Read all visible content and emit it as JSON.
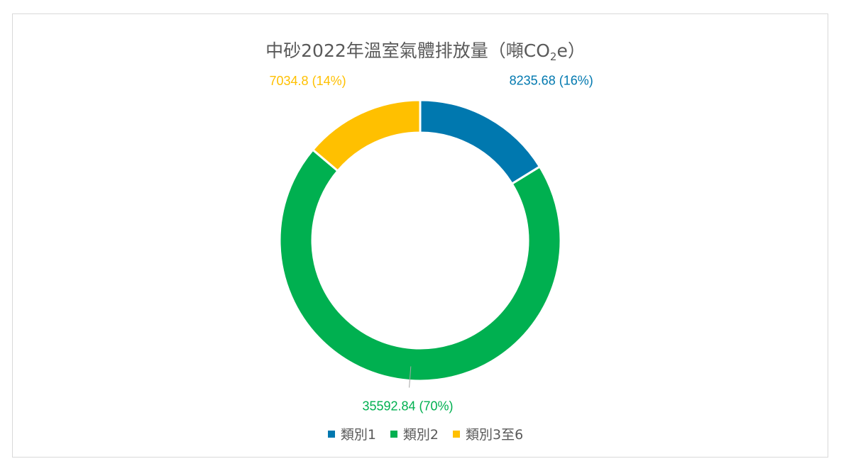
{
  "chart_data": {
    "type": "pie",
    "subtype": "donut",
    "title_main": "中砂2022年溫室氣體排放量（噸CO",
    "title_sub": "2",
    "title_end": "e）",
    "categories": [
      "類別1",
      "類別2",
      "類別3至6"
    ],
    "values": [
      8235.68,
      35592.84,
      7034.8
    ],
    "percentages": [
      "16%",
      "70%",
      "14%"
    ],
    "data_labels": [
      "8235.68 (16%)",
      "35592.84 (70%)",
      "7034.8 (14%)"
    ],
    "colors": [
      "#0078AF",
      "#00B050",
      "#FFC000"
    ],
    "legend_position": "bottom"
  }
}
